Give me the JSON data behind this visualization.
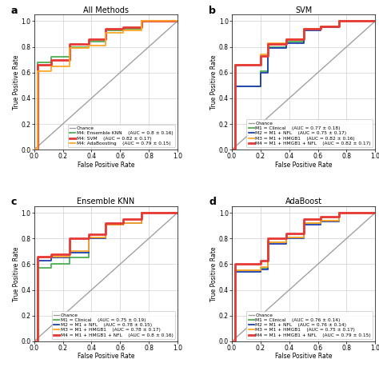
{
  "panels": [
    {
      "label": "a",
      "title": "All Methods",
      "legend_loc": "lower center",
      "curves": [
        {
          "name": "Chance",
          "color": "#999999",
          "lw": 0.9,
          "x": [
            0,
            1
          ],
          "y": [
            0,
            1
          ],
          "ls": "-",
          "auc": ""
        },
        {
          "name": "M4: Ensemble KNN",
          "auc": "(AUC = 0.8 ± 0.16)",
          "color": "#4caf50",
          "lw": 1.3,
          "x": [
            0.0,
            0.0,
            0.025,
            0.025,
            0.12,
            0.12,
            0.25,
            0.25,
            0.38,
            0.38,
            0.5,
            0.5,
            0.62,
            0.62,
            0.75,
            0.75,
            1.0
          ],
          "y": [
            0.0,
            0.0,
            0.0,
            0.68,
            0.68,
            0.72,
            0.72,
            0.8,
            0.8,
            0.84,
            0.84,
            0.93,
            0.93,
            0.94,
            0.94,
            1.0,
            1.0
          ]
        },
        {
          "name": "M4: SVM",
          "auc": "(AUC = 0.82 ± 0.17)",
          "color": "#e53935",
          "lw": 2.0,
          "x": [
            0.0,
            0.0,
            0.025,
            0.025,
            0.12,
            0.12,
            0.25,
            0.25,
            0.38,
            0.38,
            0.5,
            0.5,
            0.62,
            0.62,
            0.75,
            0.75,
            1.0
          ],
          "y": [
            0.0,
            0.0,
            0.0,
            0.66,
            0.66,
            0.7,
            0.7,
            0.82,
            0.82,
            0.86,
            0.86,
            0.94,
            0.94,
            0.95,
            0.95,
            1.0,
            1.0
          ]
        },
        {
          "name": "M4: AdaBoosting",
          "auc": "(AUC = 0.79 ± 0.15)",
          "color": "#ffa726",
          "lw": 1.3,
          "x": [
            0.0,
            0.0,
            0.025,
            0.025,
            0.12,
            0.12,
            0.25,
            0.25,
            0.38,
            0.38,
            0.5,
            0.5,
            0.62,
            0.62,
            0.75,
            0.75,
            1.0
          ],
          "y": [
            0.0,
            0.0,
            0.0,
            0.61,
            0.61,
            0.65,
            0.65,
            0.79,
            0.79,
            0.81,
            0.81,
            0.91,
            0.91,
            0.93,
            0.93,
            1.0,
            1.0
          ]
        }
      ]
    },
    {
      "label": "b",
      "title": "SVM",
      "legend_loc": "lower center",
      "curves": [
        {
          "name": "Chance",
          "color": "#999999",
          "lw": 0.9,
          "x": [
            0,
            1
          ],
          "y": [
            0,
            1
          ],
          "ls": "-",
          "auc": ""
        },
        {
          "name": "M1 = Clinical",
          "auc": "(AUC = 0.77 ± 0.18)",
          "color": "#4caf50",
          "lw": 1.3,
          "x": [
            0.0,
            0.0,
            0.025,
            0.025,
            0.2,
            0.2,
            0.25,
            0.25,
            0.38,
            0.38,
            0.5,
            0.5,
            0.62,
            0.62,
            0.75,
            0.75,
            1.0
          ],
          "y": [
            0.0,
            0.0,
            0.0,
            0.49,
            0.49,
            0.61,
            0.61,
            0.8,
            0.8,
            0.84,
            0.84,
            0.94,
            0.94,
            0.96,
            0.96,
            1.0,
            1.0
          ]
        },
        {
          "name": "M2 = M1 + NFL",
          "auc": "(AUC = 0.75 ± 0.17)",
          "color": "#1e40af",
          "lw": 1.3,
          "x": [
            0.0,
            0.0,
            0.025,
            0.025,
            0.2,
            0.2,
            0.25,
            0.25,
            0.38,
            0.38,
            0.5,
            0.5,
            0.62,
            0.62,
            0.75,
            0.75,
            1.0
          ],
          "y": [
            0.0,
            0.0,
            0.0,
            0.49,
            0.49,
            0.6,
            0.6,
            0.79,
            0.79,
            0.83,
            0.83,
            0.93,
            0.93,
            0.95,
            0.95,
            1.0,
            1.0
          ]
        },
        {
          "name": "M3 = M1 + HMGB1",
          "auc": "(AUC = 0.82 ± 0.16)",
          "color": "#ffa726",
          "lw": 1.3,
          "x": [
            0.0,
            0.0,
            0.025,
            0.025,
            0.2,
            0.2,
            0.25,
            0.25,
            0.38,
            0.38,
            0.5,
            0.5,
            0.62,
            0.62,
            0.75,
            0.75,
            1.0
          ],
          "y": [
            0.0,
            0.0,
            0.0,
            0.66,
            0.66,
            0.74,
            0.74,
            0.83,
            0.83,
            0.86,
            0.86,
            0.94,
            0.94,
            0.96,
            0.96,
            1.0,
            1.0
          ]
        },
        {
          "name": "M4 = M1 + HMGB1 + NFL",
          "auc": "(AUC = 0.82 ± 0.17)",
          "color": "#e53935",
          "lw": 2.0,
          "x": [
            0.0,
            0.0,
            0.025,
            0.025,
            0.2,
            0.2,
            0.25,
            0.25,
            0.38,
            0.38,
            0.5,
            0.5,
            0.62,
            0.62,
            0.75,
            0.75,
            1.0
          ],
          "y": [
            0.0,
            0.0,
            0.0,
            0.66,
            0.66,
            0.73,
            0.73,
            0.82,
            0.82,
            0.86,
            0.86,
            0.94,
            0.94,
            0.96,
            0.96,
            1.0,
            1.0
          ]
        }
      ]
    },
    {
      "label": "c",
      "title": "Ensemble KNN",
      "legend_loc": "lower center",
      "curves": [
        {
          "name": "Chance",
          "color": "#999999",
          "lw": 0.9,
          "x": [
            0,
            1
          ],
          "y": [
            0,
            1
          ],
          "ls": "-",
          "auc": ""
        },
        {
          "name": "M1 = Clinical",
          "auc": "(AUC = 0.75 ± 0.19)",
          "color": "#4caf50",
          "lw": 1.3,
          "x": [
            0.0,
            0.0,
            0.025,
            0.025,
            0.12,
            0.12,
            0.25,
            0.25,
            0.38,
            0.38,
            0.5,
            0.5,
            0.62,
            0.62,
            0.75,
            0.75,
            1.0
          ],
          "y": [
            0.0,
            0.0,
            0.0,
            0.57,
            0.57,
            0.6,
            0.6,
            0.65,
            0.65,
            0.8,
            0.8,
            0.91,
            0.91,
            0.92,
            0.92,
            1.0,
            1.0
          ]
        },
        {
          "name": "M2 = M1 + NFL",
          "auc": "(AUC = 0.78 ± 0.15)",
          "color": "#1e40af",
          "lw": 1.3,
          "x": [
            0.0,
            0.0,
            0.025,
            0.025,
            0.12,
            0.12,
            0.25,
            0.25,
            0.38,
            0.38,
            0.5,
            0.5,
            0.62,
            0.62,
            0.75,
            0.75,
            1.0
          ],
          "y": [
            0.0,
            0.0,
            0.0,
            0.63,
            0.63,
            0.65,
            0.65,
            0.69,
            0.69,
            0.8,
            0.8,
            0.91,
            0.91,
            0.92,
            0.92,
            1.0,
            1.0
          ]
        },
        {
          "name": "M3 = M1 + HMGB1",
          "auc": "(AUC = 0.78 ± 0.17)",
          "color": "#ffa726",
          "lw": 1.3,
          "x": [
            0.0,
            0.0,
            0.025,
            0.025,
            0.12,
            0.12,
            0.25,
            0.25,
            0.38,
            0.38,
            0.5,
            0.5,
            0.62,
            0.62,
            0.75,
            0.75,
            1.0
          ],
          "y": [
            0.0,
            0.0,
            0.0,
            0.65,
            0.65,
            0.66,
            0.66,
            0.7,
            0.7,
            0.81,
            0.81,
            0.91,
            0.91,
            0.92,
            0.92,
            1.0,
            1.0
          ]
        },
        {
          "name": "M4 = M1 + HMGB1 + NFL",
          "auc": "(AUC = 0.8 ± 0.16)",
          "color": "#e53935",
          "lw": 2.0,
          "x": [
            0.0,
            0.0,
            0.025,
            0.025,
            0.12,
            0.12,
            0.25,
            0.25,
            0.38,
            0.38,
            0.5,
            0.5,
            0.62,
            0.62,
            0.75,
            0.75,
            1.0
          ],
          "y": [
            0.0,
            0.0,
            0.0,
            0.66,
            0.66,
            0.68,
            0.68,
            0.8,
            0.8,
            0.83,
            0.83,
            0.92,
            0.92,
            0.95,
            0.95,
            1.0,
            1.0
          ]
        }
      ]
    },
    {
      "label": "d",
      "title": "AdaBoost",
      "legend_loc": "lower center",
      "curves": [
        {
          "name": "Chance",
          "color": "#999999",
          "lw": 0.9,
          "x": [
            0,
            1
          ],
          "y": [
            0,
            1
          ],
          "ls": "-",
          "auc": ""
        },
        {
          "name": "M1 = Clinical",
          "auc": "(AUC = 0.76 ± 0.14)",
          "color": "#4caf50",
          "lw": 1.3,
          "x": [
            0.0,
            0.0,
            0.025,
            0.025,
            0.2,
            0.2,
            0.25,
            0.25,
            0.38,
            0.38,
            0.5,
            0.5,
            0.62,
            0.62,
            0.75,
            0.75,
            1.0
          ],
          "y": [
            0.0,
            0.0,
            0.0,
            0.55,
            0.55,
            0.57,
            0.57,
            0.77,
            0.77,
            0.81,
            0.81,
            0.92,
            0.92,
            0.94,
            0.94,
            1.0,
            1.0
          ]
        },
        {
          "name": "M2 = M1 + NFL",
          "auc": "(AUC = 0.76 ± 0.14)",
          "color": "#1e40af",
          "lw": 1.3,
          "x": [
            0.0,
            0.0,
            0.025,
            0.025,
            0.2,
            0.2,
            0.25,
            0.25,
            0.38,
            0.38,
            0.5,
            0.5,
            0.62,
            0.62,
            0.75,
            0.75,
            1.0
          ],
          "y": [
            0.0,
            0.0,
            0.0,
            0.54,
            0.54,
            0.56,
            0.56,
            0.76,
            0.76,
            0.8,
            0.8,
            0.91,
            0.91,
            0.93,
            0.93,
            1.0,
            1.0
          ]
        },
        {
          "name": "M3 = M1 + HMGB1",
          "auc": "(AUC = 0.75 ± 0.17)",
          "color": "#ffa726",
          "lw": 1.3,
          "x": [
            0.0,
            0.0,
            0.025,
            0.025,
            0.2,
            0.2,
            0.25,
            0.25,
            0.38,
            0.38,
            0.5,
            0.5,
            0.62,
            0.62,
            0.75,
            0.75,
            1.0
          ],
          "y": [
            0.0,
            0.0,
            0.0,
            0.55,
            0.55,
            0.58,
            0.58,
            0.77,
            0.77,
            0.81,
            0.81,
            0.92,
            0.92,
            0.94,
            0.94,
            1.0,
            1.0
          ]
        },
        {
          "name": "M4 = M1 + HMGB1 + NFL",
          "auc": "(AUC = 0.79 ± 0.15)",
          "color": "#e53935",
          "lw": 2.0,
          "x": [
            0.0,
            0.0,
            0.025,
            0.025,
            0.2,
            0.2,
            0.25,
            0.25,
            0.38,
            0.38,
            0.5,
            0.5,
            0.62,
            0.62,
            0.75,
            0.75,
            1.0
          ],
          "y": [
            0.0,
            0.0,
            0.0,
            0.6,
            0.6,
            0.63,
            0.63,
            0.8,
            0.8,
            0.84,
            0.84,
            0.95,
            0.95,
            0.97,
            0.97,
            1.0,
            1.0
          ]
        }
      ]
    }
  ],
  "bg_color": "#ffffff",
  "plot_bg": "#ffffff",
  "grid_color": "#d0d0d0",
  "tick_fs": 5.5,
  "label_fs": 5.5,
  "title_fs": 7.0,
  "legend_fs": 4.2,
  "panel_label_fs": 9
}
